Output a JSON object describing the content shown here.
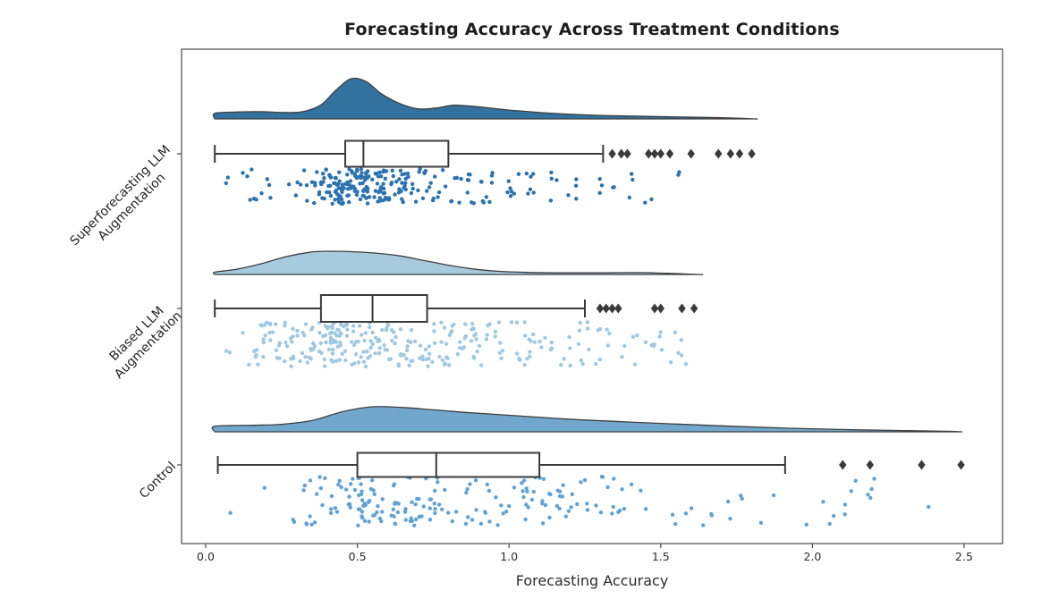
{
  "title": "Forecasting Accuracy Across Treatment Conditions",
  "xlabel": "Forecasting Accuracy",
  "chart_data": {
    "type": "raincloud (half-violin + boxplot + jittered strip)",
    "title": "Forecasting Accuracy Across Treatment Conditions",
    "xlabel": "Forecasting Accuracy",
    "ylabel": "",
    "xlim": [
      -0.08,
      2.62
    ],
    "x_ticks": [
      0.0,
      0.5,
      1.0,
      1.5,
      2.0,
      2.5
    ],
    "grid": "off",
    "legend": "none",
    "outlier_marker": "diamond",
    "outlier_color": "#3a3a3a",
    "box_edge_color": "#3a3a3a",
    "spine_color": "#4a4a4a",
    "groups": [
      {
        "label": "Superforecasting LLM\nAugmentation",
        "fill_color": "#33719f",
        "point_color": "#2a72b0",
        "box": {
          "whisker_low": 0.03,
          "q1": 0.46,
          "median": 0.52,
          "q3": 0.8,
          "whisker_high": 1.31
        },
        "outliers": [
          1.34,
          1.37,
          1.39,
          1.46,
          1.48,
          1.5,
          1.53,
          1.6,
          1.69,
          1.73,
          1.76,
          1.8
        ],
        "density": {
          "x": [
            0.03,
            0.1,
            0.18,
            0.26,
            0.32,
            0.38,
            0.43,
            0.48,
            0.53,
            0.58,
            0.64,
            0.7,
            0.76,
            0.82,
            0.9,
            1.0,
            1.12,
            1.25,
            1.4,
            1.55,
            1.7,
            1.81
          ],
          "h": [
            0.14,
            0.17,
            0.18,
            0.16,
            0.18,
            0.35,
            0.72,
            1.0,
            0.92,
            0.62,
            0.38,
            0.25,
            0.27,
            0.34,
            0.3,
            0.22,
            0.15,
            0.1,
            0.07,
            0.05,
            0.03,
            0.0
          ]
        },
        "points": {
          "n": 255,
          "seed": 11,
          "clip": [
            0.04,
            1.81
          ],
          "mixture": [
            {
              "w": 0.5,
              "mu": 0.5,
              "sd": 0.09
            },
            {
              "w": 0.22,
              "mu": 0.8,
              "sd": 0.16
            },
            {
              "w": 0.18,
              "mu": 1.05,
              "sd": 0.3
            },
            {
              "w": 0.1,
              "mu": 0.22,
              "sd": 0.1
            }
          ]
        }
      },
      {
        "label": "Biased LLM\nAugmentation",
        "fill_color": "#a7cadf",
        "point_color": "#9fc8e2",
        "box": {
          "whisker_low": 0.03,
          "q1": 0.38,
          "median": 0.55,
          "q3": 0.73,
          "whisker_high": 1.25
        },
        "outliers": [
          1.3,
          1.32,
          1.34,
          1.36,
          1.48,
          1.5,
          1.57,
          1.61
        ],
        "density": {
          "x": [
            0.03,
            0.1,
            0.18,
            0.26,
            0.34,
            0.4,
            0.48,
            0.56,
            0.64,
            0.72,
            0.8,
            0.88,
            0.96,
            1.06,
            1.18,
            1.3,
            1.42,
            1.52,
            1.63
          ],
          "h": [
            0.1,
            0.22,
            0.45,
            0.75,
            0.95,
            1.0,
            0.98,
            0.92,
            0.8,
            0.6,
            0.4,
            0.24,
            0.14,
            0.09,
            0.07,
            0.07,
            0.08,
            0.05,
            0.0
          ]
        },
        "points": {
          "n": 300,
          "seed": 23,
          "clip": [
            0.04,
            1.62
          ],
          "mixture": [
            {
              "w": 0.45,
              "mu": 0.4,
              "sd": 0.13
            },
            {
              "w": 0.3,
              "mu": 0.62,
              "sd": 0.2
            },
            {
              "w": 0.15,
              "mu": 0.95,
              "sd": 0.25
            },
            {
              "w": 0.1,
              "mu": 1.3,
              "sd": 0.2
            }
          ]
        }
      },
      {
        "label": "Control",
        "fill_color": "#72a7cd",
        "point_color": "#5fa3d6",
        "box": {
          "whisker_low": 0.04,
          "q1": 0.5,
          "median": 0.76,
          "q3": 1.1,
          "whisker_high": 1.91
        },
        "outliers": [
          2.1,
          2.19,
          2.36,
          2.49
        ],
        "density": {
          "x": [
            0.03,
            0.15,
            0.25,
            0.35,
            0.45,
            0.55,
            0.65,
            0.75,
            0.85,
            0.95,
            1.05,
            1.15,
            1.25,
            1.4,
            1.55,
            1.7,
            1.85,
            2.0,
            2.15,
            2.3,
            2.45,
            2.49
          ],
          "h": [
            0.22,
            0.26,
            0.3,
            0.45,
            0.8,
            1.0,
            0.97,
            0.88,
            0.78,
            0.7,
            0.62,
            0.54,
            0.47,
            0.39,
            0.31,
            0.24,
            0.17,
            0.12,
            0.08,
            0.05,
            0.02,
            0.0
          ]
        },
        "points": {
          "n": 210,
          "seed": 37,
          "clip": [
            0.04,
            2.5
          ],
          "mixture": [
            {
              "w": 0.4,
              "mu": 0.55,
              "sd": 0.16
            },
            {
              "w": 0.3,
              "mu": 0.9,
              "sd": 0.3
            },
            {
              "w": 0.2,
              "mu": 1.35,
              "sd": 0.35
            },
            {
              "w": 0.1,
              "mu": 2.0,
              "sd": 0.3
            }
          ]
        }
      }
    ]
  }
}
